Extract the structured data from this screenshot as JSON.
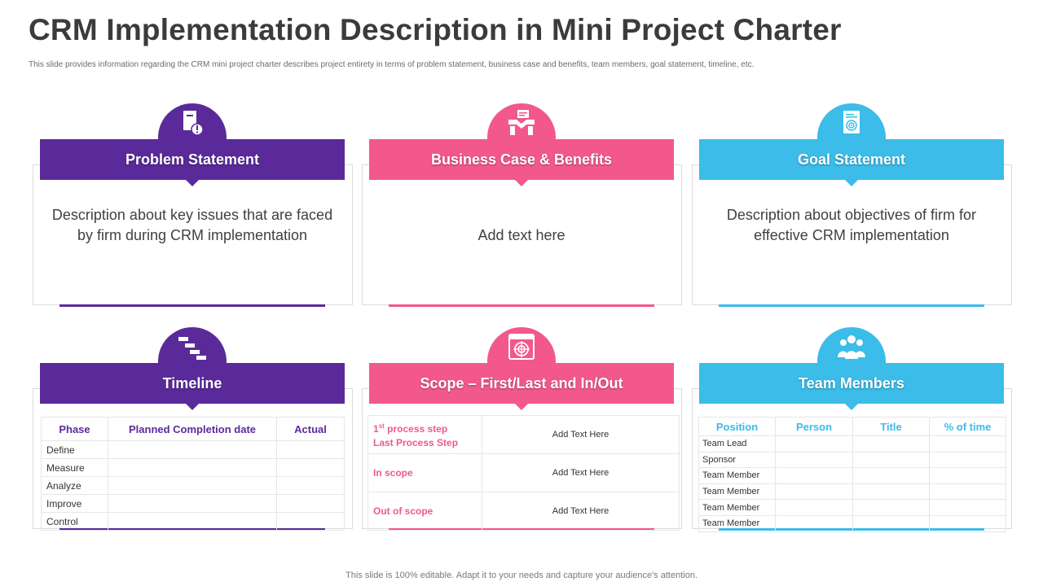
{
  "header": {
    "title": "CRM Implementation Description in Mini Project Charter",
    "subtitle": "This slide provides information regarding the CRM mini project charter describes project entirety in terms of problem statement, business case and benefits, team members, goal statement, timeline, etc."
  },
  "colors": {
    "purple": "#5b2a9a",
    "pink": "#f2588c",
    "blue": "#3bbce9"
  },
  "cards": {
    "problem": {
      "title": "Problem Statement",
      "icon": "document-alert-icon",
      "text": "Description about key issues that are faced by firm during CRM implementation"
    },
    "business": {
      "title": "Business Case & Benefits",
      "icon": "handshake-document-icon",
      "text": "Add text here"
    },
    "goal": {
      "title": "Goal Statement",
      "icon": "document-target-icon",
      "text": "Description about objectives of firm for effective CRM implementation"
    },
    "timeline": {
      "title": "Timeline",
      "icon": "gantt-chart-icon",
      "headers": [
        "Phase",
        "Planned Completion date",
        "Actual"
      ],
      "rows": [
        "Define",
        "Measure",
        "Analyze",
        "Improve",
        "Control"
      ]
    },
    "scope": {
      "title": "Scope – First/Last and In/Out",
      "icon": "target-board-icon",
      "row1_prefix": "1",
      "row1_sup": "st",
      "row1_suffix": " process step",
      "row1_line2": "Last Process Step",
      "row2_label": "In scope",
      "row3_label": "Out of scope",
      "value": "Add Text Here"
    },
    "team": {
      "title": "Team Members",
      "icon": "people-group-icon",
      "headers": [
        "Position",
        "Person",
        "Title",
        "% of time"
      ],
      "rows": [
        "Team Lead",
        "Sponsor",
        "Team Member",
        "Team Member",
        "Team Member",
        "Team Member"
      ]
    }
  },
  "footer": "This slide is 100% editable. Adapt it to your needs and capture your audience's attention."
}
